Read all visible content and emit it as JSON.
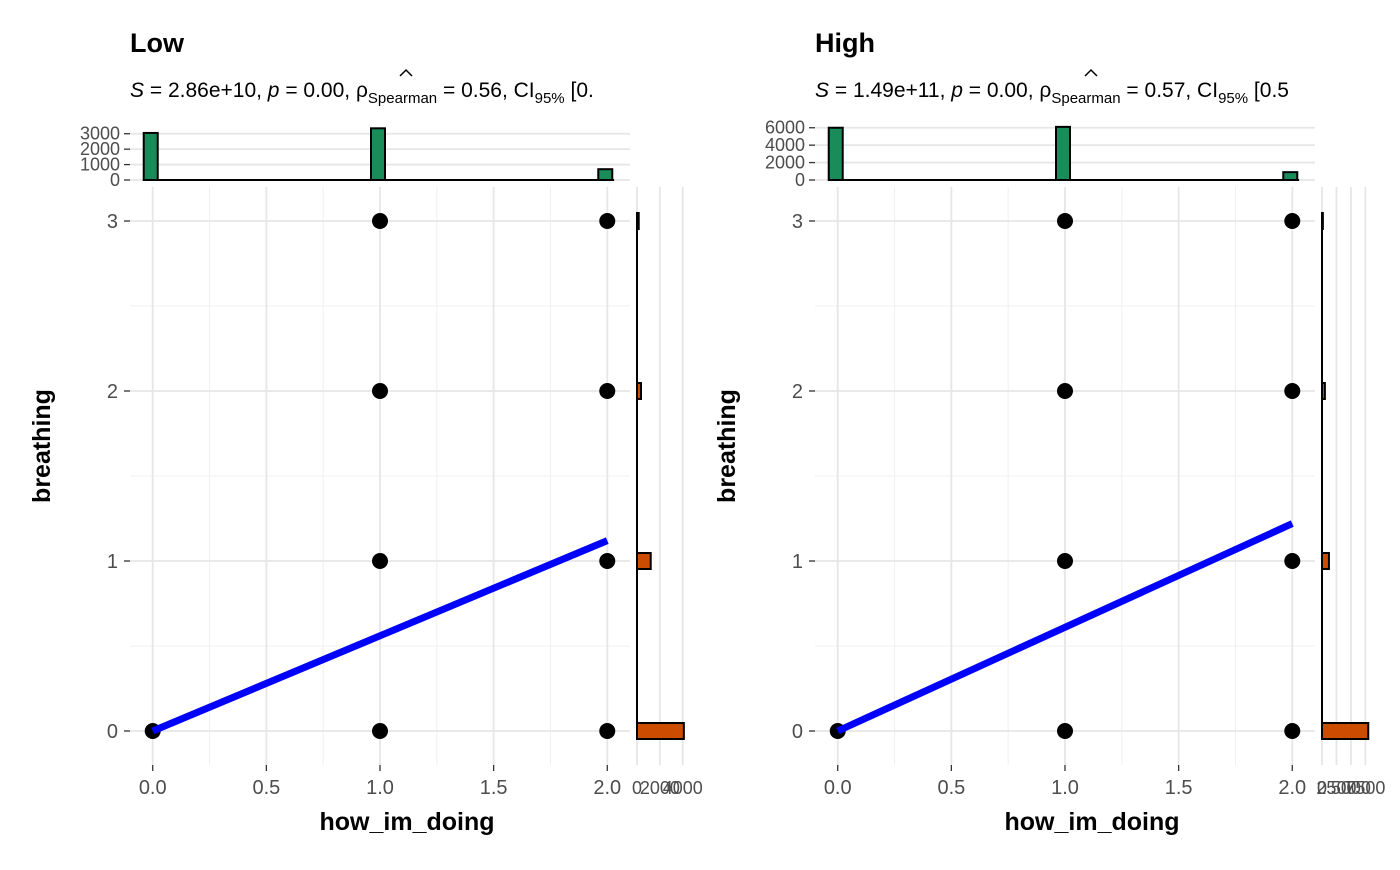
{
  "chart_data": [
    {
      "type": "scatter",
      "title": "Low",
      "subtitle": {
        "s_label": "S",
        "s_value": " = 2.86e+10, ",
        "p_label": "p",
        "p_value": " = 0.00, ",
        "rho_label": "ρ",
        "rho_sub": "Spearman",
        "rho_value": " = 0.56, CI",
        "ci_sub": "95%",
        "ci_value": " [0."
      },
      "xlabel": "how_im_doing",
      "ylabel": "breathing",
      "xlim": [
        -0.1,
        2.1
      ],
      "ylim": [
        -0.2,
        3.2
      ],
      "x_ticks": [
        "0.0",
        "0.5",
        "1.0",
        "1.5",
        "2.0"
      ],
      "y_ticks": [
        "0",
        "1",
        "2",
        "3"
      ],
      "points": [
        {
          "x": 0,
          "y": 0
        },
        {
          "x": 1,
          "y": 0
        },
        {
          "x": 2,
          "y": 0
        },
        {
          "x": 1,
          "y": 1
        },
        {
          "x": 2,
          "y": 1
        },
        {
          "x": 1,
          "y": 2
        },
        {
          "x": 2,
          "y": 2
        },
        {
          "x": 1,
          "y": 3
        },
        {
          "x": 2,
          "y": 3
        }
      ],
      "fit_line": {
        "x": [
          0,
          2
        ],
        "y": [
          0,
          1.12
        ],
        "color": "#0000ff"
      },
      "x_marginal": {
        "color": "#1a8c5a",
        "ticks": [
          "0",
          "1000",
          "2000",
          "3000"
        ],
        "ylim": [
          0,
          3500
        ],
        "bins": [
          {
            "x": 0,
            "count": 3050
          },
          {
            "x": 1,
            "count": 3350
          },
          {
            "x": 2,
            "count": 700
          }
        ]
      },
      "y_marginal": {
        "color": "#cc4c02",
        "ticks": [
          "0",
          "2000",
          "4000"
        ],
        "tick_labels": [
          "0",
          "2000",
          "4000"
        ],
        "xlim": [
          0,
          4200
        ],
        "bins": [
          {
            "y": 0,
            "count": 4100
          },
          {
            "y": 1,
            "count": 1200
          },
          {
            "y": 2,
            "count": 350
          },
          {
            "y": 3,
            "count": 150
          }
        ]
      }
    },
    {
      "type": "scatter",
      "title": "High",
      "subtitle": {
        "s_label": "S",
        "s_value": " = 1.49e+11, ",
        "p_label": "p",
        "p_value": " = 0.00, ",
        "rho_label": "ρ",
        "rho_sub": "Spearman",
        "rho_value": " = 0.57, CI",
        "ci_sub": "95%",
        "ci_value": " [0.5"
      },
      "xlabel": "how_im_doing",
      "ylabel": "breathing",
      "xlim": [
        -0.1,
        2.1
      ],
      "ylim": [
        -0.2,
        3.2
      ],
      "x_ticks": [
        "0.0",
        "0.5",
        "1.0",
        "1.5",
        "2.0"
      ],
      "y_ticks": [
        "0",
        "1",
        "2",
        "3"
      ],
      "points": [
        {
          "x": 0,
          "y": 0
        },
        {
          "x": 1,
          "y": 0
        },
        {
          "x": 2,
          "y": 0
        },
        {
          "x": 1,
          "y": 1
        },
        {
          "x": 2,
          "y": 1
        },
        {
          "x": 1,
          "y": 2
        },
        {
          "x": 2,
          "y": 2
        },
        {
          "x": 1,
          "y": 3
        },
        {
          "x": 2,
          "y": 3
        }
      ],
      "fit_line": {
        "x": [
          0,
          2
        ],
        "y": [
          0,
          1.22
        ],
        "color": "#0000ff"
      },
      "x_marginal": {
        "color": "#1a8c5a",
        "ticks": [
          "0",
          "2000",
          "4000",
          "6000"
        ],
        "ylim": [
          0,
          6200
        ],
        "bins": [
          {
            "x": 0,
            "count": 6000
          },
          {
            "x": 1,
            "count": 6100
          },
          {
            "x": 2,
            "count": 900
          }
        ]
      },
      "y_marginal": {
        "color": "#cc4c02",
        "ticks": [
          "0",
          "2500",
          "5000",
          "7500"
        ],
        "tick_labels": [
          "0",
          "2500",
          "5000",
          "7500"
        ],
        "xlim": [
          0,
          8300
        ],
        "bins": [
          {
            "y": 0,
            "count": 8000
          },
          {
            "y": 1,
            "count": 1200
          },
          {
            "y": 2,
            "count": 500
          },
          {
            "y": 3,
            "count": 150
          }
        ]
      }
    }
  ]
}
